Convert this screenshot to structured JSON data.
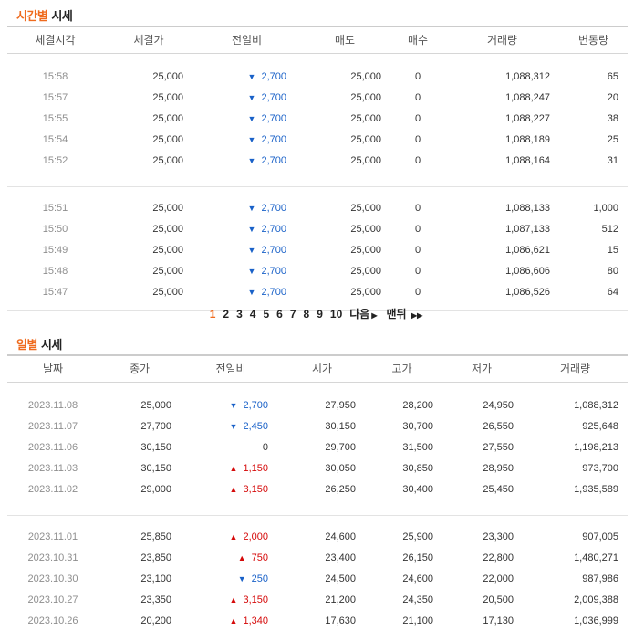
{
  "sections": {
    "time": {
      "title_hl": "시간별",
      "title_rest": " 시세"
    },
    "daily": {
      "title_hl": "일별",
      "title_rest": " 시세"
    }
  },
  "time_table": {
    "headers": [
      "체결시각",
      "체결가",
      "전일비",
      "매도",
      "매수",
      "거래량",
      "변동량"
    ],
    "groups": [
      [
        {
          "time": "15:58",
          "price": "25,000",
          "diff": "2,700",
          "dir": "down",
          "sell": "25,000",
          "buy": "0",
          "volume": "1,088,312",
          "change": "65"
        },
        {
          "time": "15:57",
          "price": "25,000",
          "diff": "2,700",
          "dir": "down",
          "sell": "25,000",
          "buy": "0",
          "volume": "1,088,247",
          "change": "20"
        },
        {
          "time": "15:55",
          "price": "25,000",
          "diff": "2,700",
          "dir": "down",
          "sell": "25,000",
          "buy": "0",
          "volume": "1,088,227",
          "change": "38"
        },
        {
          "time": "15:54",
          "price": "25,000",
          "diff": "2,700",
          "dir": "down",
          "sell": "25,000",
          "buy": "0",
          "volume": "1,088,189",
          "change": "25"
        },
        {
          "time": "15:52",
          "price": "25,000",
          "diff": "2,700",
          "dir": "down",
          "sell": "25,000",
          "buy": "0",
          "volume": "1,088,164",
          "change": "31"
        }
      ],
      [
        {
          "time": "15:51",
          "price": "25,000",
          "diff": "2,700",
          "dir": "down",
          "sell": "25,000",
          "buy": "0",
          "volume": "1,088,133",
          "change": "1,000"
        },
        {
          "time": "15:50",
          "price": "25,000",
          "diff": "2,700",
          "dir": "down",
          "sell": "25,000",
          "buy": "0",
          "volume": "1,087,133",
          "change": "512"
        },
        {
          "time": "15:49",
          "price": "25,000",
          "diff": "2,700",
          "dir": "down",
          "sell": "25,000",
          "buy": "0",
          "volume": "1,086,621",
          "change": "15"
        },
        {
          "time": "15:48",
          "price": "25,000",
          "diff": "2,700",
          "dir": "down",
          "sell": "25,000",
          "buy": "0",
          "volume": "1,086,606",
          "change": "80"
        },
        {
          "time": "15:47",
          "price": "25,000",
          "diff": "2,700",
          "dir": "down",
          "sell": "25,000",
          "buy": "0",
          "volume": "1,086,526",
          "change": "64"
        }
      ]
    ]
  },
  "pagination": {
    "pages": [
      "1",
      "2",
      "3",
      "4",
      "5",
      "6",
      "7",
      "8",
      "9",
      "10"
    ],
    "current": "1",
    "next_label": "다음",
    "last_label": "맨뒤"
  },
  "daily_table": {
    "headers": [
      "날짜",
      "종가",
      "전일비",
      "시가",
      "고가",
      "저가",
      "거래량"
    ],
    "groups": [
      [
        {
          "date": "2023.11.08",
          "close": "25,000",
          "diff": "2,700",
          "dir": "down",
          "open": "27,950",
          "high": "28,200",
          "low": "24,950",
          "volume": "1,088,312"
        },
        {
          "date": "2023.11.07",
          "close": "27,700",
          "diff": "2,450",
          "dir": "down",
          "open": "30,150",
          "high": "30,700",
          "low": "26,550",
          "volume": "925,648"
        },
        {
          "date": "2023.11.06",
          "close": "30,150",
          "diff": "0",
          "dir": "flat",
          "open": "29,700",
          "high": "31,500",
          "low": "27,550",
          "volume": "1,198,213"
        },
        {
          "date": "2023.11.03",
          "close": "30,150",
          "diff": "1,150",
          "dir": "up",
          "open": "30,050",
          "high": "30,850",
          "low": "28,950",
          "volume": "973,700"
        },
        {
          "date": "2023.11.02",
          "close": "29,000",
          "diff": "3,150",
          "dir": "up",
          "open": "26,250",
          "high": "30,400",
          "low": "25,450",
          "volume": "1,935,589"
        }
      ],
      [
        {
          "date": "2023.11.01",
          "close": "25,850",
          "diff": "2,000",
          "dir": "up",
          "open": "24,600",
          "high": "25,900",
          "low": "23,300",
          "volume": "907,005"
        },
        {
          "date": "2023.10.31",
          "close": "23,850",
          "diff": "750",
          "dir": "up",
          "open": "23,400",
          "high": "26,150",
          "low": "22,800",
          "volume": "1,480,271"
        },
        {
          "date": "2023.10.30",
          "close": "23,100",
          "diff": "250",
          "dir": "down",
          "open": "24,500",
          "high": "24,600",
          "low": "22,000",
          "volume": "987,986"
        },
        {
          "date": "2023.10.27",
          "close": "23,350",
          "diff": "3,150",
          "dir": "up",
          "open": "21,200",
          "high": "24,350",
          "low": "20,500",
          "volume": "2,009,388"
        },
        {
          "date": "2023.10.26",
          "close": "20,200",
          "diff": "1,340",
          "dir": "up",
          "open": "17,630",
          "high": "21,100",
          "low": "17,130",
          "volume": "1,036,999"
        }
      ]
    ]
  },
  "colors": {
    "accent": "#ef6b1e",
    "down": "#1961c8",
    "up": "#d50a0a"
  },
  "icons": {
    "down": "triangle-down-icon",
    "up": "triangle-up-icon",
    "next": "arrow-right-icon",
    "last": "double-arrow-right-icon"
  }
}
